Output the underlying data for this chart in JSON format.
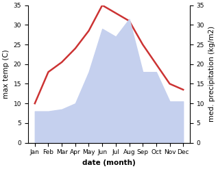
{
  "months": [
    "Jan",
    "Feb",
    "Mar",
    "Apr",
    "May",
    "Jun",
    "Jul",
    "Aug",
    "Sep",
    "Oct",
    "Nov",
    "Dec"
  ],
  "max_temp": [
    10.0,
    18.0,
    20.5,
    24.0,
    28.5,
    35.0,
    33.0,
    31.0,
    25.0,
    20.0,
    15.0,
    13.5
  ],
  "precipitation": [
    8.0,
    8.0,
    8.5,
    10.0,
    18.0,
    29.0,
    27.0,
    31.5,
    18.0,
    18.0,
    10.5,
    10.5
  ],
  "temp_color": "#cc3333",
  "precip_color": "#c5d0ee",
  "ylim_left": [
    0,
    35
  ],
  "ylim_right": [
    0,
    35
  ],
  "xlabel": "date (month)",
  "ylabel_left": "max temp (C)",
  "ylabel_right": "med. precipitation (kg/m2)",
  "bg_color": "#ffffff",
  "label_fontsize": 7.5,
  "tick_fontsize": 6.5,
  "line_width": 1.8
}
